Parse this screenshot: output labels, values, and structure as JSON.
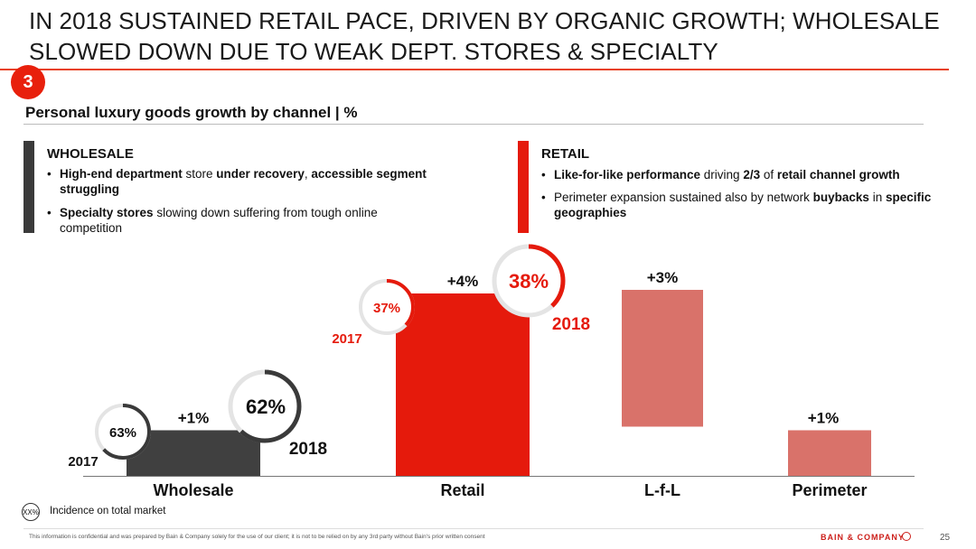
{
  "slide": {
    "title": "IN 2018 SUSTAINED RETAIL PACE, DRIVEN BY ORGANIC GROWTH; WHOLESALE SLOWED DOWN DUE TO WEAK DEPT. STORES & SPECIALTY",
    "section_number": "3",
    "subtitle": "Personal luxury goods growth by channel | %",
    "page_number": "25",
    "disclaimer": "This information is confidential and was prepared by Bain & Company solely for the use of our client; it is not to be relied on by any 3rd party without Bain's prior written consent",
    "logo": "BAIN & COMPANY",
    "legend_symbol": "XX%",
    "legend_text": "Incidence on total market"
  },
  "colors": {
    "accent": "#e8200c",
    "wholesale": "#404040",
    "retail": "#e51a0c",
    "lfl": "#d9726a",
    "perimeter": "#d9726a"
  },
  "panels": {
    "wholesale": {
      "heading": "WHOLESALE",
      "b1_strong1": "High-end department",
      "b1_text1": " store ",
      "b1_strong2": "under recovery",
      "b1_text2": ", ",
      "b1_strong3": "accessible segment struggling",
      "b2_strong1": "Specialty stores",
      "b2_text1": " slowing down suffering from tough online competition"
    },
    "retail": {
      "heading": "RETAIL",
      "b1_strong1": "Like-for-like performance",
      "b1_text1": " driving ",
      "b1_strong2": "2/3",
      "b1_text2": " of ",
      "b1_strong3": "retail channel growth",
      "b2_text1": "Perimeter expansion sustained also by network ",
      "b2_strong1": "buybacks",
      "b2_text2": " in ",
      "b2_strong2": "specific geographies"
    }
  },
  "chart_data": {
    "type": "bar",
    "title": "Personal luxury goods growth by channel",
    "ylabel": "%",
    "categories": [
      "Wholesale",
      "Retail",
      "L-f-L",
      "Perimeter"
    ],
    "values": [
      1,
      4,
      3,
      1
    ],
    "value_labels": [
      "+1%",
      "+4%",
      "+3%",
      "+1%"
    ],
    "incidence": [
      {
        "category": "Wholesale",
        "year_2017": "63%",
        "year_2018": "62%",
        "label_2017": "2017",
        "label_2018": "2018"
      },
      {
        "category": "Retail",
        "year_2017": "37%",
        "year_2018": "38%",
        "label_2017": "2017",
        "label_2018": "2018"
      }
    ]
  }
}
